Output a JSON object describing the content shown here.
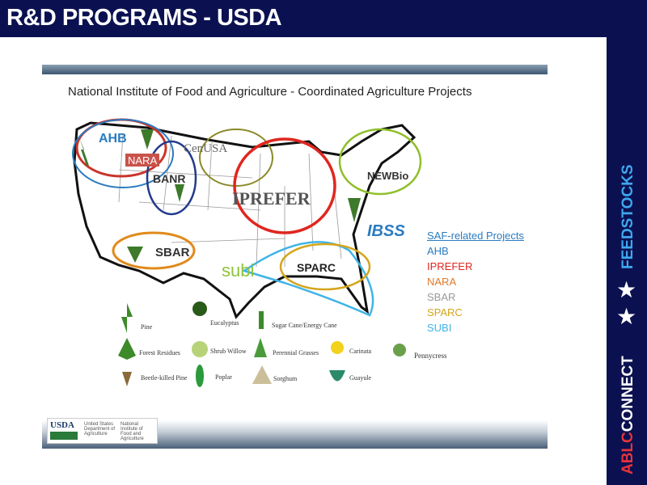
{
  "header": {
    "title": "R&D PROGRAMS - USDA"
  },
  "sidebar": {
    "section": "FEEDSTOCKS",
    "brand_a": "ABLC",
    "brand_b": "CONNECT",
    "icons": [
      "star-icon",
      "star-icon"
    ]
  },
  "slide": {
    "subtitle": "National Institute of Food and Agriculture - Coordinated Agriculture Projects",
    "map_labels": {
      "ahb": "AHB",
      "nara": "NARA",
      "cenusa": "CenUSA",
      "banr": "BANR",
      "iprefer": "IPREFER",
      "newbio": "NEWBio",
      "ibss": "IBSS",
      "sbar": "SBAR",
      "subi": "subi",
      "sparc": "SPARC"
    },
    "projects": {
      "heading": "SAF-related Projects",
      "items": [
        {
          "label": "AHB",
          "color": "#2a7bbf"
        },
        {
          "label": "IPREFER",
          "color": "#e0261f"
        },
        {
          "label": "NARA",
          "color": "#e07a2a"
        },
        {
          "label": "SBAR",
          "color": "#9a9a9a"
        },
        {
          "label": "SPARC",
          "color": "#d4a51c"
        },
        {
          "label": "SUBI",
          "color": "#3fb4e6"
        }
      ]
    },
    "legend": [
      "Pine",
      "Forest Residues",
      "Beetle-killed Pine",
      "Eucalyptus",
      "Shrub Willow",
      "Poplar",
      "Sugar Cane/Energy Cane",
      "Perennial Grasses",
      "Sorghum",
      "Carinata",
      "Guayule",
      "Pennycress"
    ],
    "logo": {
      "mark": "USDA",
      "dept": "United States Department of Agriculture",
      "inst": "National Institute of Food and Agriculture"
    }
  }
}
